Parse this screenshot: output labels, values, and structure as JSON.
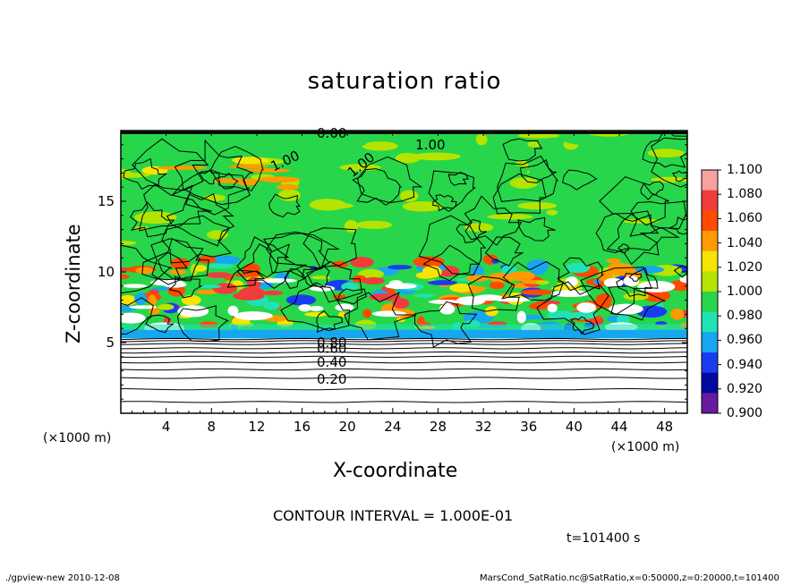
{
  "chart_data": {
    "type": "heatmap",
    "title": "saturation ratio",
    "xlabel": "X-coordinate",
    "ylabel": "Z-coordinate",
    "x_unit_left": "(×1000 m)",
    "x_unit_right": "(×1000 m)",
    "xlim": [
      0,
      50
    ],
    "ylim": [
      0,
      20
    ],
    "x_ticks": [
      4,
      8,
      12,
      16,
      20,
      24,
      28,
      32,
      36,
      40,
      44,
      48
    ],
    "y_ticks": [
      5,
      10,
      15
    ],
    "contour_labels": [
      "0.00",
      "1.00",
      "1.00",
      "1.00",
      "0.80",
      "0.60",
      "0.40",
      "0.20"
    ],
    "contour_interval": "CONTOUR INTERVAL = 1.000E-01",
    "time_label": "t=101400 s",
    "colorbar": {
      "labels": [
        "1.100",
        "1.080",
        "1.060",
        "1.040",
        "1.020",
        "1.000",
        "0.980",
        "0.960",
        "0.940",
        "0.920",
        "0.900"
      ],
      "values": [
        1.1,
        1.08,
        1.06,
        1.04,
        1.02,
        1.0,
        0.98,
        0.96,
        0.94,
        0.92,
        0.9
      ],
      "colors": [
        "#f7a1a1",
        "#f03c3c",
        "#ff4a00",
        "#ff9a00",
        "#f7e400",
        "#b4e400",
        "#27d64a",
        "#1fe3b5",
        "#17a6f0",
        "#1a3cf0",
        "#000aa0",
        "#6a1aa0"
      ]
    }
  },
  "footer": {
    "left": "./gpview-new 2010-12-08",
    "right": "MarsCond_SatRatio.nc@SatRatio,x=0:50000,z=0:20000,t=101400"
  }
}
